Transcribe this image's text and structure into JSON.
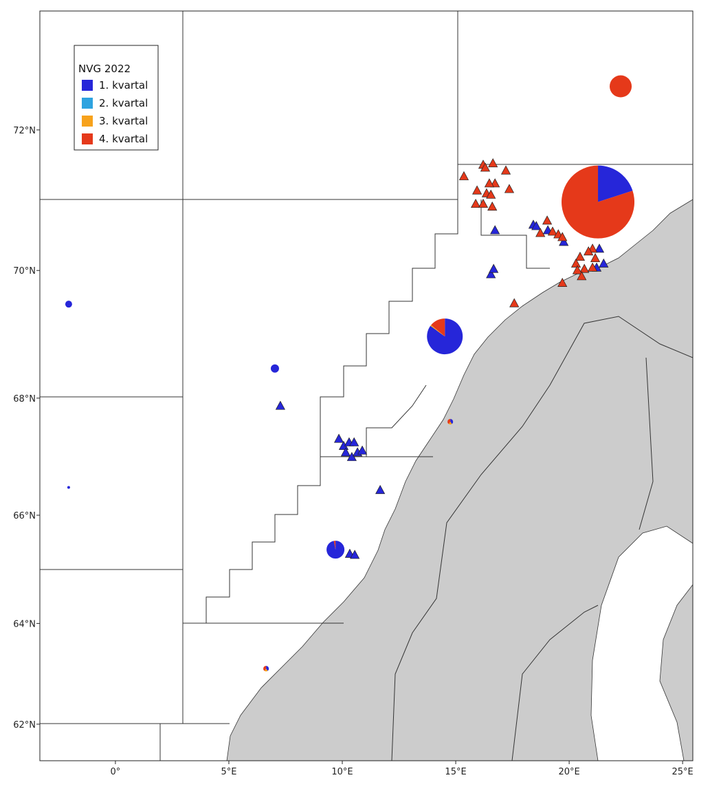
{
  "chart_data": {
    "type": "map",
    "projection": "mercator",
    "xlim": [
      -3.33,
      25.45
    ],
    "ylim": [
      61.24,
      73.54
    ],
    "xticks": [
      {
        "value": 0,
        "label": "0°"
      },
      {
        "value": 5,
        "label": "5°E"
      },
      {
        "value": 10,
        "label": "10°E"
      },
      {
        "value": 15,
        "label": "15°E"
      },
      {
        "value": 20,
        "label": "20°E"
      },
      {
        "value": 25,
        "label": "25°E"
      }
    ],
    "yticks": [
      {
        "value": 62,
        "label": "62°N"
      },
      {
        "value": 64,
        "label": "64°N"
      },
      {
        "value": 66,
        "label": "66°N"
      },
      {
        "value": 68,
        "label": "68°N"
      },
      {
        "value": 70,
        "label": "70°N"
      },
      {
        "value": 72,
        "label": "72°N"
      }
    ],
    "legend": {
      "title": "NVG 2022"
    },
    "series": [
      {
        "name": "1. kvartal",
        "color": "#2626d9",
        "triangles": [
          [
            16.73,
            70.59
          ],
          [
            18.42,
            70.67
          ],
          [
            18.55,
            70.65
          ],
          [
            19.06,
            70.59
          ],
          [
            19.76,
            70.42
          ],
          [
            21.33,
            70.32
          ],
          [
            21.52,
            70.1
          ],
          [
            16.55,
            69.94
          ],
          [
            16.67,
            70.02
          ],
          [
            21.21,
            70.04
          ],
          [
            9.85,
            67.32
          ],
          [
            10.06,
            67.2
          ],
          [
            10.3,
            67.26
          ],
          [
            10.52,
            67.26
          ],
          [
            10.15,
            67.09
          ],
          [
            10.42,
            67.01
          ],
          [
            10.67,
            67.09
          ],
          [
            10.88,
            67.12
          ],
          [
            11.67,
            66.44
          ],
          [
            10.33,
            65.3
          ],
          [
            10.55,
            65.28
          ],
          [
            7.27,
            67.87
          ]
        ]
      },
      {
        "name": "2. kvartal",
        "color": "#2ea3e0"
      },
      {
        "name": "3. kvartal",
        "color": "#f7a21b"
      },
      {
        "name": "4. kvartal",
        "color": "#e5391a",
        "triangles": [
          [
            15.36,
            71.36
          ],
          [
            16.21,
            71.52
          ],
          [
            16.3,
            71.48
          ],
          [
            16.64,
            71.54
          ],
          [
            17.21,
            71.44
          ],
          [
            17.36,
            71.18
          ],
          [
            15.94,
            71.16
          ],
          [
            16.73,
            71.26
          ],
          [
            16.48,
            71.26
          ],
          [
            16.36,
            71.12
          ],
          [
            16.55,
            71.1
          ],
          [
            15.88,
            70.97
          ],
          [
            16.21,
            70.97
          ],
          [
            16.61,
            70.93
          ],
          [
            19.03,
            70.73
          ],
          [
            18.73,
            70.55
          ],
          [
            19.27,
            70.57
          ],
          [
            19.52,
            70.53
          ],
          [
            19.7,
            70.49
          ],
          [
            21.03,
            70.32
          ],
          [
            20.85,
            70.28
          ],
          [
            20.48,
            70.2
          ],
          [
            20.3,
            70.1
          ],
          [
            20.67,
            70.02
          ],
          [
            21.15,
            70.18
          ],
          [
            20.36,
            70.0
          ],
          [
            20.55,
            69.91
          ],
          [
            19.7,
            69.81
          ],
          [
            17.58,
            69.5
          ],
          [
            21.03,
            70.04
          ]
        ]
      }
    ],
    "pies": [
      {
        "lon": 22.27,
        "lat": 72.58,
        "size": 256,
        "values": [
          0,
          0,
          0,
          100
        ]
      },
      {
        "lon": 21.27,
        "lat": 71.0,
        "size": 2809,
        "values": [
          20,
          0,
          0,
          80
        ]
      },
      {
        "lon": 14.52,
        "lat": 68.99,
        "size": 676,
        "values": [
          85,
          0,
          1,
          14
        ]
      },
      {
        "lon": -2.06,
        "lat": 69.49,
        "size": 25,
        "values": [
          100,
          0,
          0,
          0
        ]
      },
      {
        "lon": 7.03,
        "lat": 68.48,
        "size": 36,
        "values": [
          100,
          0,
          0,
          0
        ]
      },
      {
        "lon": -2.06,
        "lat": 66.49,
        "size": 4,
        "values": [
          100,
          0,
          0,
          0
        ]
      },
      {
        "lon": 9.7,
        "lat": 65.38,
        "size": 169,
        "values": [
          97,
          0,
          0,
          3
        ]
      },
      {
        "lon": 14.76,
        "lat": 67.61,
        "size": 16,
        "values": [
          40,
          0,
          20,
          40
        ]
      },
      {
        "lon": 6.64,
        "lat": 63.12,
        "size": 16,
        "values": [
          40,
          0,
          20,
          40
        ]
      }
    ]
  }
}
